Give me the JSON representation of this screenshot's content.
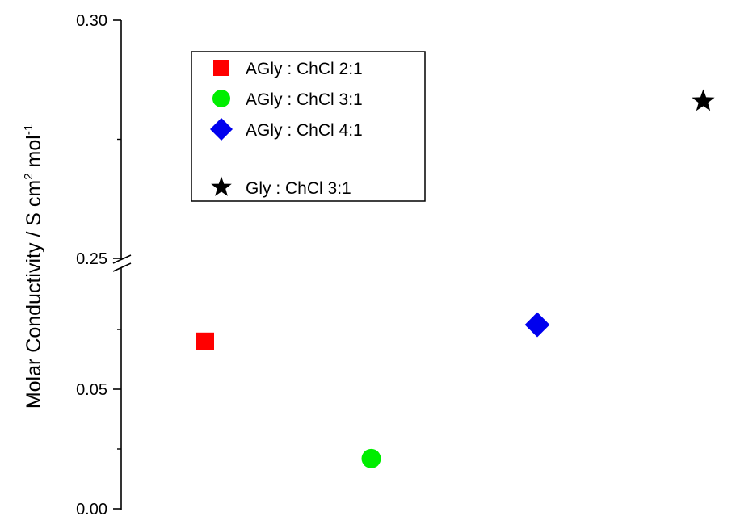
{
  "chart_data": {
    "type": "scatter",
    "ylabel": "Molar Conductivity / S cm",
    "ylabel_sup1": "2",
    "ylabel_mid": " mol",
    "ylabel_sup2": "-1",
    "y_axis_broken": true,
    "y_segments": [
      {
        "range": [
          0.0,
          0.1
        ],
        "tick_labels": [
          "0.00",
          "0.05"
        ],
        "major_ticks": [
          0.0,
          0.05
        ],
        "minor_ticks": [
          0.025,
          0.075
        ]
      },
      {
        "range": [
          0.25,
          0.3
        ],
        "tick_labels": [
          "0.25",
          "0.30"
        ],
        "major_ticks": [
          0.25,
          0.3
        ],
        "minor_ticks": [
          0.275
        ]
      }
    ],
    "legend_placement": "top-left",
    "series": [
      {
        "name": "AGly : ChCl 2:1",
        "marker": "square",
        "color": "#ff0000",
        "x": 1,
        "y": 0.07
      },
      {
        "name": "AGly : ChCl 3:1",
        "marker": "circle",
        "color": "#00ee00",
        "x": 2,
        "y": 0.021
      },
      {
        "name": "AGly : ChCl 4:1",
        "marker": "diamond",
        "color": "#0000ee",
        "x": 3,
        "y": 0.077
      },
      {
        "name": "Gly : ChCl 3:1",
        "marker": "star",
        "color": "#000000",
        "x": 4,
        "y": 0.283
      }
    ]
  }
}
